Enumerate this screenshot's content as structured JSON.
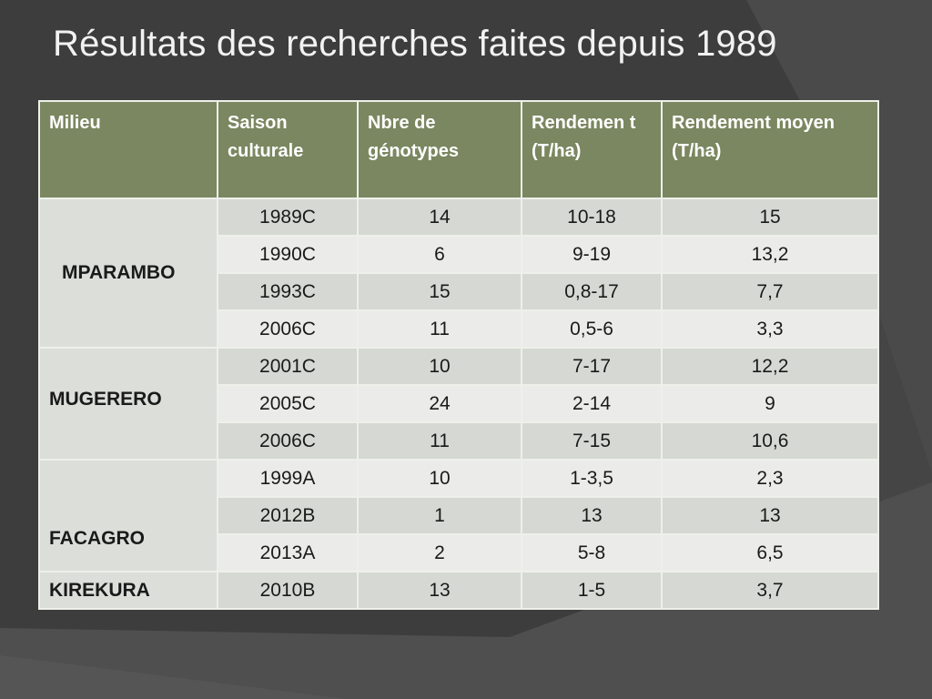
{
  "title": "Résultats des recherches faites depuis 1989",
  "table": {
    "headers": [
      "Milieu",
      "Saison culturale",
      "Nbre de génotypes",
      "Rendemen t (T/ha)",
      "Rendement moyen (T/ha)"
    ],
    "groups": [
      {
        "milieu": "MPARAMBO",
        "rows": [
          {
            "saison": "1989C",
            "nbre": "14",
            "rendement": "10-18",
            "moyen": "15"
          },
          {
            "saison": "1990C",
            "nbre": "6",
            "rendement": "9-19",
            "moyen": "13,2"
          },
          {
            "saison": "1993C",
            "nbre": "15",
            "rendement": "0,8-17",
            "moyen": "7,7"
          },
          {
            "saison": "2006C",
            "nbre": "11",
            "rendement": "0,5-6",
            "moyen": "3,3"
          }
        ]
      },
      {
        "milieu": "MUGERERO",
        "rows": [
          {
            "saison": "2001C",
            "nbre": "10",
            "rendement": "7-17",
            "moyen": "12,2"
          },
          {
            "saison": "2005C",
            "nbre": "24",
            "rendement": "2-14",
            "moyen": "9"
          },
          {
            "saison": "2006C",
            "nbre": "11",
            "rendement": "7-15",
            "moyen": "10,6"
          }
        ]
      },
      {
        "milieu": "FACAGRO",
        "rows": [
          {
            "saison": "1999A",
            "nbre": "10",
            "rendement": "1-3,5",
            "moyen": "2,3"
          },
          {
            "saison": "2012B",
            "nbre": "1",
            "rendement": "13",
            "moyen": "13"
          },
          {
            "saison": "2013A",
            "nbre": "2",
            "rendement": "5-8",
            "moyen": "6,5"
          }
        ]
      },
      {
        "milieu": "KIREKURA",
        "rows": [
          {
            "saison": "2010B",
            "nbre": "13",
            "rendement": "1-5",
            "moyen": "3,7"
          }
        ]
      }
    ]
  }
}
